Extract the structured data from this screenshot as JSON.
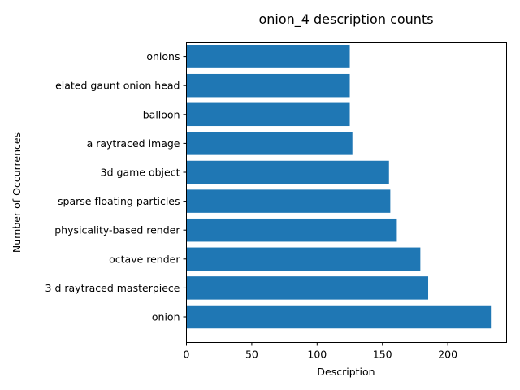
{
  "chart_data": {
    "type": "bar",
    "orientation": "horizontal",
    "title": "onion_4 description counts",
    "xlabel": "Description",
    "ylabel": "Number of Occurrences",
    "categories": [
      "onion",
      "3 d raytraced masterpiece",
      "octave render",
      "physicality-based render",
      "sparse floating particles",
      "3d game object",
      "a raytraced image",
      "balloon",
      "elated gaunt onion head",
      "onions"
    ],
    "values": [
      233,
      185,
      179,
      161,
      156,
      155,
      127,
      125,
      125,
      125
    ],
    "xlim": [
      0,
      245
    ],
    "xticks": [
      0,
      50,
      100,
      150,
      200
    ],
    "grid": false,
    "legend": "none",
    "bar_color": "#1f77b4"
  }
}
